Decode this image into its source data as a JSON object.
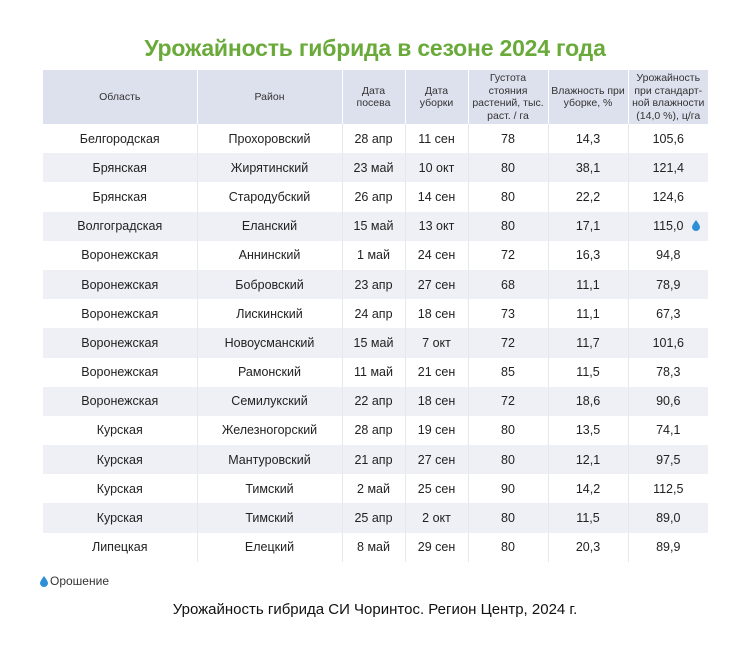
{
  "title": "Урожайность гибрида в сезоне 2024 года",
  "colors": {
    "title": "#6aaa3a",
    "header_bg": "#dde1ed",
    "stripe_bg": "#eef0f6",
    "irrigation_icon": "#2e8fd6"
  },
  "table": {
    "columns": [
      "Область",
      "Район",
      "Дата посева",
      "Дата уборки",
      "Густота стояния растений, тыс. раст. / га",
      "Влажность при уборке, %",
      "Урожайность при стандарт-ной влажности (14,0 %), ц/га"
    ],
    "rows": [
      {
        "region": "Белгородская",
        "district": "Прохоровский",
        "sowing": "28 апр",
        "harvest": "11 сен",
        "density": "78",
        "moisture": "14,3",
        "yield": "105,6",
        "irrigated": false
      },
      {
        "region": "Брянская",
        "district": "Жирятинский",
        "sowing": "23 май",
        "harvest": "10 окт",
        "density": "80",
        "moisture": "38,1",
        "yield": "121,4",
        "irrigated": false
      },
      {
        "region": "Брянская",
        "district": "Стародубский",
        "sowing": "26 апр",
        "harvest": "14 сен",
        "density": "80",
        "moisture": "22,2",
        "yield": "124,6",
        "irrigated": false
      },
      {
        "region": "Волгоградская",
        "district": "Еланский",
        "sowing": "15 май",
        "harvest": "13 окт",
        "density": "80",
        "moisture": "17,1",
        "yield": "115,0",
        "irrigated": true
      },
      {
        "region": "Воронежская",
        "district": "Аннинский",
        "sowing": "1 май",
        "harvest": "24 сен",
        "density": "72",
        "moisture": "16,3",
        "yield": "94,8",
        "irrigated": false
      },
      {
        "region": "Воронежская",
        "district": "Бобровский",
        "sowing": "23 апр",
        "harvest": "27 сен",
        "density": "68",
        "moisture": "11,1",
        "yield": "78,9",
        "irrigated": false
      },
      {
        "region": "Воронежская",
        "district": "Лискинский",
        "sowing": "24 апр",
        "harvest": "18 сен",
        "density": "73",
        "moisture": "11,1",
        "yield": "67,3",
        "irrigated": false
      },
      {
        "region": "Воронежская",
        "district": "Новоусманский",
        "sowing": "15 май",
        "harvest": "7 окт",
        "density": "72",
        "moisture": "11,7",
        "yield": "101,6",
        "irrigated": false
      },
      {
        "region": "Воронежская",
        "district": "Рамонский",
        "sowing": "11 май",
        "harvest": "21 сен",
        "density": "85",
        "moisture": "11,5",
        "yield": "78,3",
        "irrigated": false
      },
      {
        "region": "Воронежская",
        "district": "Семилукский",
        "sowing": "22 апр",
        "harvest": "18 сен",
        "density": "72",
        "moisture": "18,6",
        "yield": "90,6",
        "irrigated": false
      },
      {
        "region": "Курская",
        "district": "Железногорский",
        "sowing": "28 апр",
        "harvest": "19 сен",
        "density": "80",
        "moisture": "13,5",
        "yield": "74,1",
        "irrigated": false
      },
      {
        "region": "Курская",
        "district": "Мантуровский",
        "sowing": "21 апр",
        "harvest": "27 сен",
        "density": "80",
        "moisture": "12,1",
        "yield": "97,5",
        "irrigated": false
      },
      {
        "region": "Курская",
        "district": "Тимский",
        "sowing": "2 май",
        "harvest": "25 сен",
        "density": "90",
        "moisture": "14,2",
        "yield": "112,5",
        "irrigated": false
      },
      {
        "region": "Курская",
        "district": "Тимский",
        "sowing": "25 апр",
        "harvest": "2 окт",
        "density": "80",
        "moisture": "11,5",
        "yield": "89,0",
        "irrigated": false
      },
      {
        "region": "Липецкая",
        "district": "Елецкий",
        "sowing": "8 май",
        "harvest": "29 сен",
        "density": "80",
        "moisture": "20,3",
        "yield": "89,9",
        "irrigated": false
      }
    ]
  },
  "legend": {
    "icon": "water-drop-icon",
    "label": "Орошение"
  },
  "caption": "Урожайность гибрида СИ Чоринтос. Регион Центр, 2024 г."
}
